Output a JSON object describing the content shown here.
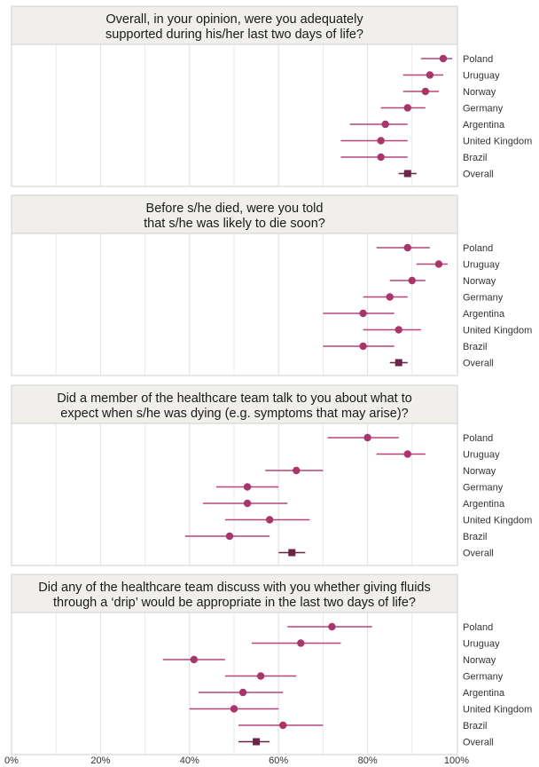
{
  "chart_data": {
    "type": "scatter",
    "subtype": "forest plot (point estimate with 95% confidence interval)",
    "countries": [
      "Poland",
      "Uruguay",
      "Norway",
      "Germany",
      "Argentina",
      "United Kingdom",
      "Brazil",
      "Overall"
    ],
    "x_axis": {
      "range": [
        0,
        100
      ],
      "ticks": [
        0,
        20,
        40,
        60,
        80,
        100
      ],
      "tick_labels": [
        "0%",
        "20%",
        "40%",
        "60%",
        "80%",
        "100%"
      ]
    },
    "grid": true,
    "colors": {
      "point": "#a8366a",
      "overall": "#6b2347",
      "interval": "#b5457a",
      "header_bg": "#f0efeb",
      "grid": "#e2e2e2"
    },
    "panels": [
      {
        "title": [
          "Overall, in your opinion, were you adequately",
          "supported during his/her last two days of life?"
        ],
        "rows": [
          {
            "country": "Poland",
            "estimate": 97,
            "lower": 92,
            "upper": 99
          },
          {
            "country": "Uruguay",
            "estimate": 94,
            "lower": 88,
            "upper": 97
          },
          {
            "country": "Norway",
            "estimate": 93,
            "lower": 88,
            "upper": 96
          },
          {
            "country": "Germany",
            "estimate": 89,
            "lower": 83,
            "upper": 93
          },
          {
            "country": "Argentina",
            "estimate": 84,
            "lower": 76,
            "upper": 89
          },
          {
            "country": "United Kingdom",
            "estimate": 83,
            "lower": 74,
            "upper": 89
          },
          {
            "country": "Brazil",
            "estimate": 83,
            "lower": 74,
            "upper": 89
          },
          {
            "country": "Overall",
            "estimate": 89,
            "lower": 87,
            "upper": 91
          }
        ]
      },
      {
        "title": [
          "Before s/he died, were you told",
          "that s/he was likely to die soon?"
        ],
        "rows": [
          {
            "country": "Poland",
            "estimate": 89,
            "lower": 82,
            "upper": 94
          },
          {
            "country": "Uruguay",
            "estimate": 96,
            "lower": 91,
            "upper": 98
          },
          {
            "country": "Norway",
            "estimate": 90,
            "lower": 85,
            "upper": 93
          },
          {
            "country": "Germany",
            "estimate": 85,
            "lower": 79,
            "upper": 89
          },
          {
            "country": "Argentina",
            "estimate": 79,
            "lower": 70,
            "upper": 86
          },
          {
            "country": "United Kingdom",
            "estimate": 87,
            "lower": 79,
            "upper": 92
          },
          {
            "country": "Brazil",
            "estimate": 79,
            "lower": 70,
            "upper": 86
          },
          {
            "country": "Overall",
            "estimate": 87,
            "lower": 85,
            "upper": 89
          }
        ]
      },
      {
        "title": [
          "Did a member of the healthcare team talk to you about what to",
          "expect when s/he was dying (e.g. symptoms that may arise)?"
        ],
        "rows": [
          {
            "country": "Poland",
            "estimate": 80,
            "lower": 71,
            "upper": 87
          },
          {
            "country": "Uruguay",
            "estimate": 89,
            "lower": 82,
            "upper": 93
          },
          {
            "country": "Norway",
            "estimate": 64,
            "lower": 57,
            "upper": 70
          },
          {
            "country": "Germany",
            "estimate": 53,
            "lower": 46,
            "upper": 60
          },
          {
            "country": "Argentina",
            "estimate": 53,
            "lower": 43,
            "upper": 62
          },
          {
            "country": "United Kingdom",
            "estimate": 58,
            "lower": 48,
            "upper": 67
          },
          {
            "country": "Brazil",
            "estimate": 49,
            "lower": 39,
            "upper": 58
          },
          {
            "country": "Overall",
            "estimate": 63,
            "lower": 60,
            "upper": 66
          }
        ]
      },
      {
        "title": [
          "Did any of the healthcare team discuss with you whether giving fluids",
          "through a ‘drip’ would be appropriate in the last two days of life?"
        ],
        "rows": [
          {
            "country": "Poland",
            "estimate": 72,
            "lower": 62,
            "upper": 81
          },
          {
            "country": "Uruguay",
            "estimate": 65,
            "lower": 54,
            "upper": 74
          },
          {
            "country": "Norway",
            "estimate": 41,
            "lower": 34,
            "upper": 48
          },
          {
            "country": "Germany",
            "estimate": 56,
            "lower": 48,
            "upper": 64
          },
          {
            "country": "Argentina",
            "estimate": 52,
            "lower": 42,
            "upper": 61
          },
          {
            "country": "United Kingdom",
            "estimate": 50,
            "lower": 40,
            "upper": 60
          },
          {
            "country": "Brazil",
            "estimate": 61,
            "lower": 51,
            "upper": 70
          },
          {
            "country": "Overall",
            "estimate": 55,
            "lower": 51,
            "upper": 58
          }
        ]
      }
    ]
  }
}
